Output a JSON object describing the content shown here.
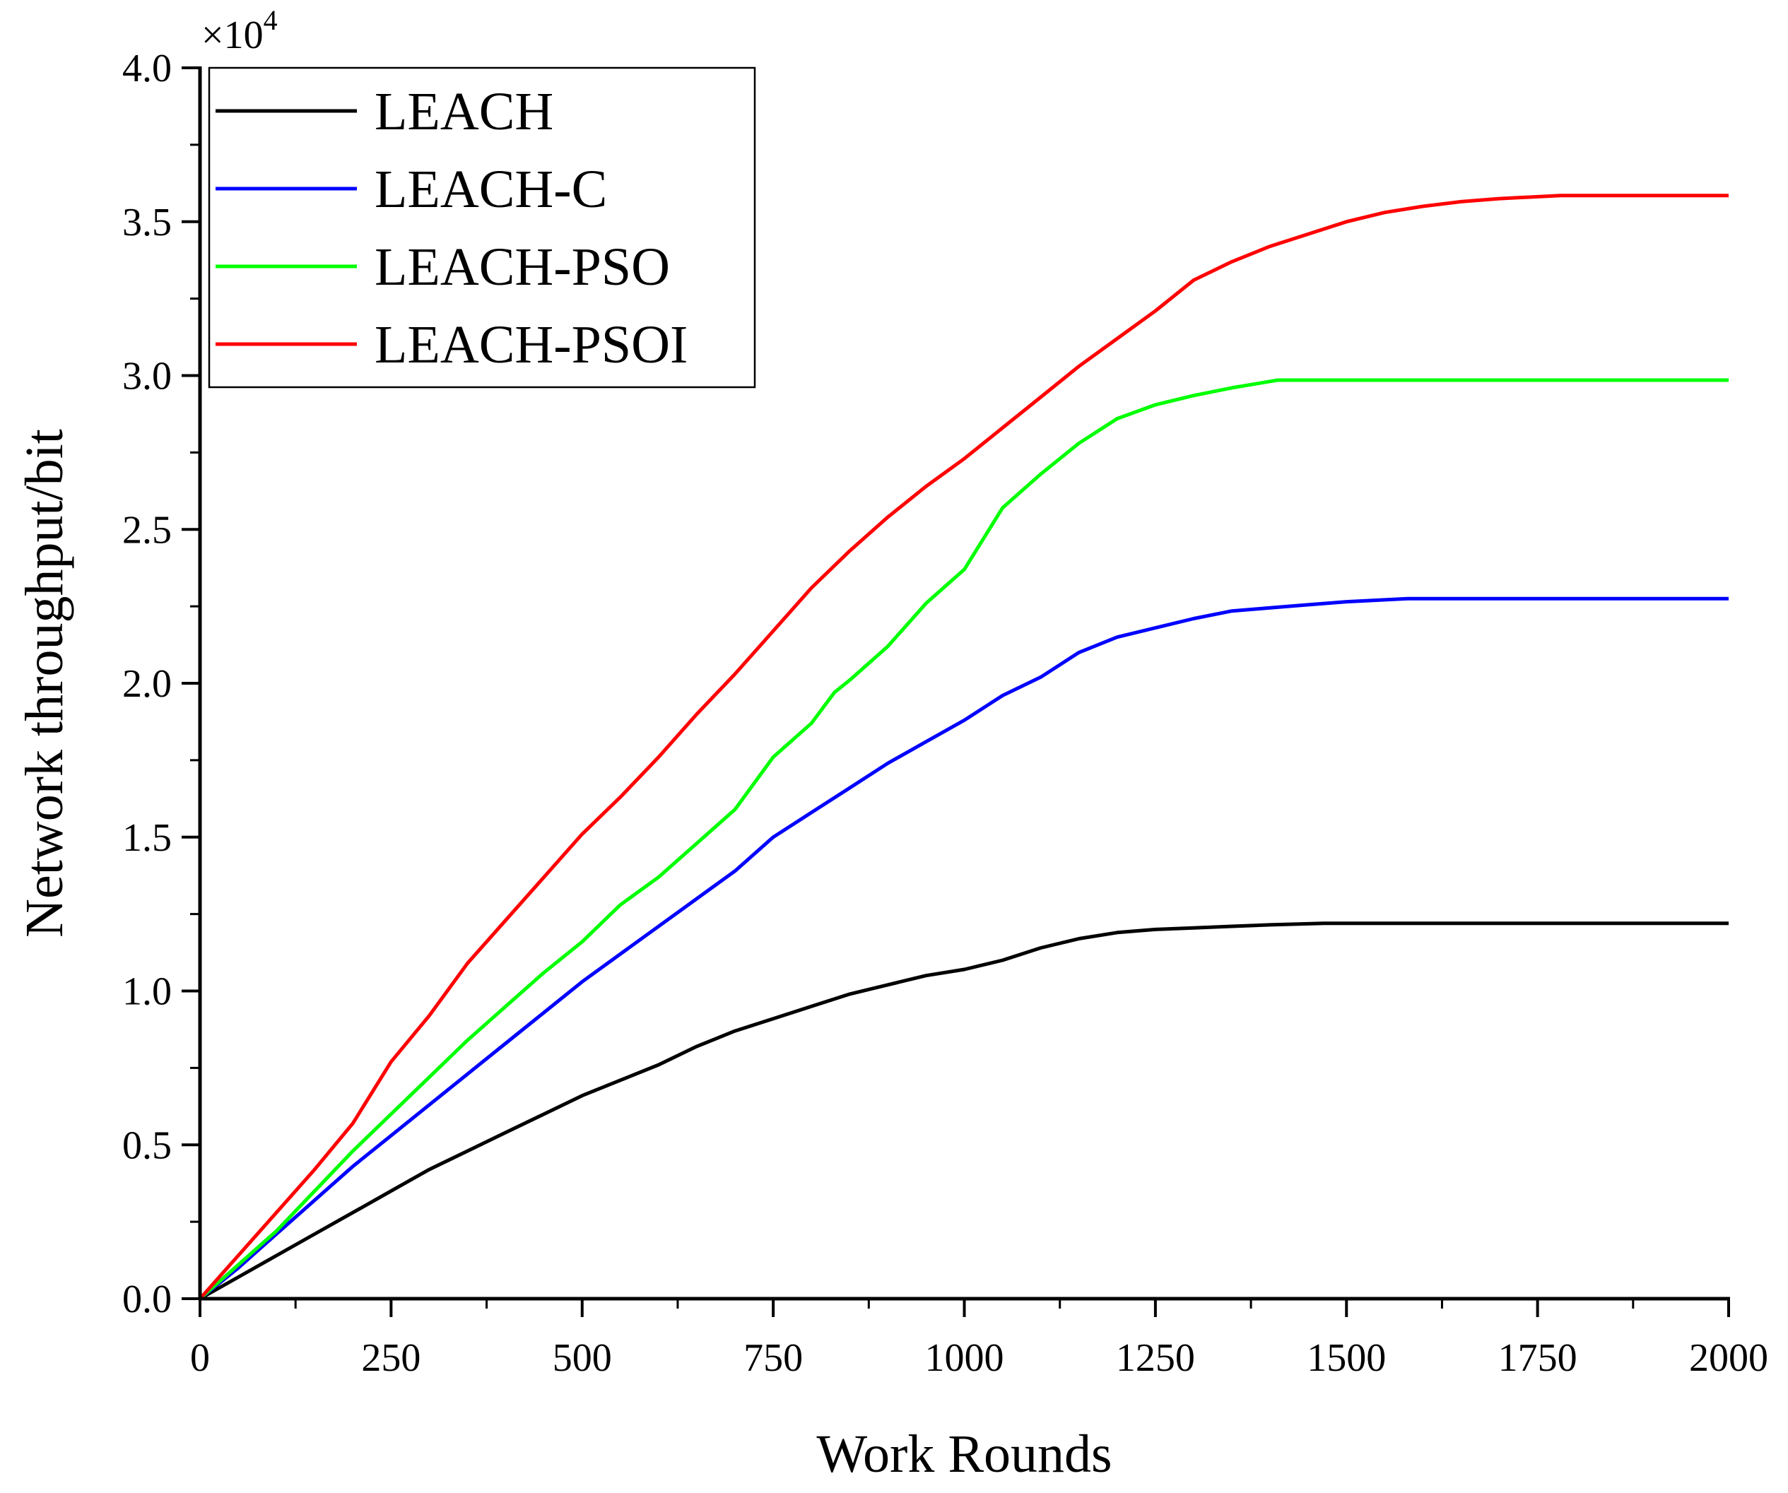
{
  "chart_data": {
    "type": "line",
    "xlabel": "Work Rounds",
    "ylabel": "Network throughput/bit",
    "y_multiplier": "×10",
    "y_multiplier_exponent": "4",
    "xlim": [
      0,
      2000
    ],
    "ylim": [
      0,
      4.0
    ],
    "x_ticks": [
      "0",
      "250",
      "500",
      "750",
      "1000",
      "1250",
      "1500",
      "1750",
      "2000"
    ],
    "y_ticks": [
      "0.0",
      "0.5",
      "1.0",
      "1.5",
      "2.0",
      "2.5",
      "3.0",
      "3.5",
      "4.0"
    ],
    "legend_position": "top-left",
    "grid": false,
    "series": [
      {
        "name": "LEACH",
        "color": "#000000",
        "points": [
          [
            0,
            0
          ],
          [
            50,
            0.07
          ],
          [
            100,
            0.14
          ],
          [
            150,
            0.21
          ],
          [
            200,
            0.28
          ],
          [
            250,
            0.35
          ],
          [
            300,
            0.42
          ],
          [
            350,
            0.48
          ],
          [
            400,
            0.54
          ],
          [
            450,
            0.6
          ],
          [
            500,
            0.66
          ],
          [
            550,
            0.71
          ],
          [
            600,
            0.76
          ],
          [
            650,
            0.82
          ],
          [
            700,
            0.87
          ],
          [
            750,
            0.91
          ],
          [
            800,
            0.95
          ],
          [
            850,
            0.99
          ],
          [
            900,
            1.02
          ],
          [
            950,
            1.05
          ],
          [
            1000,
            1.07
          ],
          [
            1050,
            1.1
          ],
          [
            1100,
            1.14
          ],
          [
            1150,
            1.17
          ],
          [
            1200,
            1.19
          ],
          [
            1250,
            1.2
          ],
          [
            1300,
            1.205
          ],
          [
            1350,
            1.21
          ],
          [
            1400,
            1.215
          ],
          [
            1470,
            1.22
          ],
          [
            1600,
            1.22
          ],
          [
            1800,
            1.22
          ],
          [
            2000,
            1.22
          ]
        ]
      },
      {
        "name": "LEACH-C",
        "color": "#0000ff",
        "points": [
          [
            0,
            0
          ],
          [
            50,
            0.1
          ],
          [
            100,
            0.21
          ],
          [
            150,
            0.32
          ],
          [
            200,
            0.43
          ],
          [
            250,
            0.53
          ],
          [
            300,
            0.63
          ],
          [
            350,
            0.73
          ],
          [
            400,
            0.83
          ],
          [
            450,
            0.93
          ],
          [
            500,
            1.03
          ],
          [
            550,
            1.12
          ],
          [
            600,
            1.21
          ],
          [
            650,
            1.3
          ],
          [
            700,
            1.39
          ],
          [
            750,
            1.5
          ],
          [
            800,
            1.58
          ],
          [
            850,
            1.66
          ],
          [
            900,
            1.74
          ],
          [
            950,
            1.81
          ],
          [
            1000,
            1.88
          ],
          [
            1050,
            1.96
          ],
          [
            1100,
            2.02
          ],
          [
            1150,
            2.1
          ],
          [
            1200,
            2.15
          ],
          [
            1250,
            2.18
          ],
          [
            1300,
            2.21
          ],
          [
            1350,
            2.235
          ],
          [
            1400,
            2.245
          ],
          [
            1450,
            2.255
          ],
          [
            1500,
            2.265
          ],
          [
            1580,
            2.275
          ],
          [
            1700,
            2.275
          ],
          [
            2000,
            2.275
          ]
        ]
      },
      {
        "name": "LEACH-PSO",
        "color": "#00ff00",
        "points": [
          [
            0,
            0
          ],
          [
            50,
            0.11
          ],
          [
            100,
            0.22
          ],
          [
            150,
            0.35
          ],
          [
            200,
            0.48
          ],
          [
            250,
            0.6
          ],
          [
            300,
            0.72
          ],
          [
            350,
            0.84
          ],
          [
            400,
            0.95
          ],
          [
            450,
            1.06
          ],
          [
            500,
            1.16
          ],
          [
            550,
            1.28
          ],
          [
            600,
            1.37
          ],
          [
            650,
            1.48
          ],
          [
            700,
            1.59
          ],
          [
            750,
            1.76
          ],
          [
            800,
            1.87
          ],
          [
            830,
            1.97
          ],
          [
            850,
            2.01
          ],
          [
            900,
            2.12
          ],
          [
            950,
            2.26
          ],
          [
            1000,
            2.37
          ],
          [
            1050,
            2.57
          ],
          [
            1100,
            2.68
          ],
          [
            1150,
            2.78
          ],
          [
            1200,
            2.86
          ],
          [
            1250,
            2.905
          ],
          [
            1300,
            2.935
          ],
          [
            1350,
            2.96
          ],
          [
            1410,
            2.985
          ],
          [
            1500,
            2.985
          ],
          [
            2000,
            2.985
          ]
        ]
      },
      {
        "name": "LEACH-PSOI",
        "color": "#ff0000",
        "points": [
          [
            0,
            0
          ],
          [
            50,
            0.14
          ],
          [
            100,
            0.28
          ],
          [
            150,
            0.42
          ],
          [
            200,
            0.57
          ],
          [
            250,
            0.77
          ],
          [
            300,
            0.92
          ],
          [
            350,
            1.09
          ],
          [
            400,
            1.23
          ],
          [
            450,
            1.37
          ],
          [
            500,
            1.51
          ],
          [
            550,
            1.63
          ],
          [
            600,
            1.76
          ],
          [
            650,
            1.9
          ],
          [
            700,
            2.03
          ],
          [
            750,
            2.17
          ],
          [
            800,
            2.31
          ],
          [
            850,
            2.43
          ],
          [
            900,
            2.54
          ],
          [
            950,
            2.64
          ],
          [
            1000,
            2.73
          ],
          [
            1050,
            2.83
          ],
          [
            1100,
            2.93
          ],
          [
            1150,
            3.03
          ],
          [
            1200,
            3.12
          ],
          [
            1250,
            3.21
          ],
          [
            1300,
            3.31
          ],
          [
            1350,
            3.37
          ],
          [
            1400,
            3.42
          ],
          [
            1450,
            3.46
          ],
          [
            1500,
            3.5
          ],
          [
            1550,
            3.53
          ],
          [
            1600,
            3.55
          ],
          [
            1650,
            3.565
          ],
          [
            1700,
            3.575
          ],
          [
            1780,
            3.585
          ],
          [
            1900,
            3.585
          ],
          [
            2000,
            3.585
          ]
        ]
      }
    ]
  }
}
